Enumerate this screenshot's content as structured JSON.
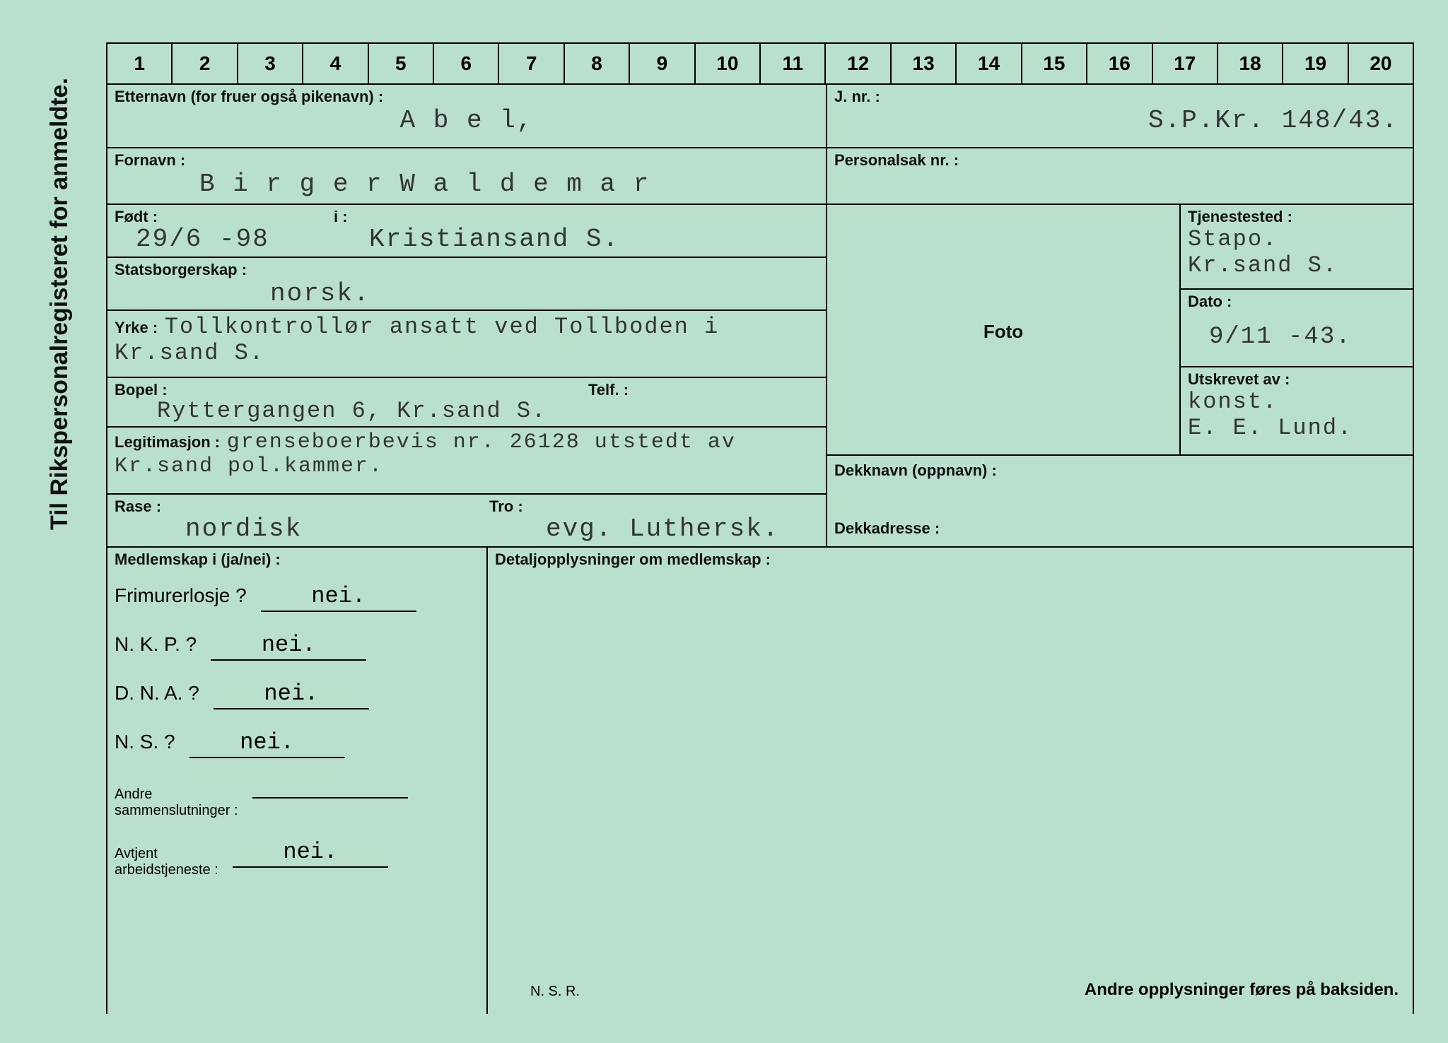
{
  "side_label": "Til Rikspersonalregisteret for anmeldte.",
  "ruler": [
    "1",
    "2",
    "3",
    "4",
    "5",
    "6",
    "7",
    "8",
    "9",
    "10",
    "11",
    "12",
    "13",
    "14",
    "15",
    "16",
    "17",
    "18",
    "19",
    "20"
  ],
  "labels": {
    "etternavn": "Etternavn (for fruer også pikenavn) :",
    "jnr": "J. nr. :",
    "fornavn": "Fornavn :",
    "personalsak": "Personalsak nr. :",
    "fodt": "Født :",
    "i": "i :",
    "tjenestested": "Tjenestested :",
    "statsborgerskap": "Statsborgerskap :",
    "dato": "Dato :",
    "yrke": "Yrke :",
    "foto": "Foto",
    "bopel": "Bopel :",
    "telf": "Telf. :",
    "utskrevet": "Utskrevet av :",
    "legitimasjon": "Legitimasjon :",
    "rase": "Rase :",
    "tro": "Tro :",
    "dekknavn": "Dekknavn (oppnavn) :",
    "dekkadresse": "Dekkadresse :",
    "medlemskap": "Medlemskap i (ja/nei) :",
    "detaljopp": "Detaljopplysninger om medlemskap :",
    "andre_sammen": "Andre\nsammenslutninger :",
    "avtjent": "Avtjent\narbeidstjeneste :",
    "nsr": "N. S. R.",
    "footer": "Andre opplysninger føres på baksiden."
  },
  "values": {
    "etternavn": "A b e l,",
    "jnr": "S.P.Kr. 148/43.",
    "fornavn": "B i r g e r  W a l d e m a r",
    "fodt": "29/6 -98",
    "i": "Kristiansand S.",
    "tjenestested_1": "Stapo.",
    "tjenestested_2": "Kr.sand S.",
    "statsborgerskap": "norsk.",
    "dato": "9/11 -43.",
    "yrke": "Tollkontrollør ansatt ved Tollboden i Kr.sand S.",
    "bopel": "Ryttergangen 6, Kr.sand S.",
    "utskrevet_1": "konst.",
    "utskrevet_2": "E. E. Lund.",
    "legitimasjon": "grenseboerbevis nr. 26128 utstedt av Kr.sand pol.kammer.",
    "rase": "nordisk",
    "tro": "evg. Luthersk."
  },
  "membership": {
    "q1": "Frimurerlosje ?",
    "a1": "nei.",
    "q2": "N. K. P. ?",
    "a2": "nei.",
    "q3": "D. N. A. ?",
    "a3": "nei.",
    "q4": "N. S. ?",
    "a4": "nei.",
    "andre_sammen": "",
    "avtjent": "nei."
  },
  "colors": {
    "background": "#b8e0cc",
    "line": "#000000",
    "typed_text": "#333333",
    "printed_text": "#111111"
  }
}
